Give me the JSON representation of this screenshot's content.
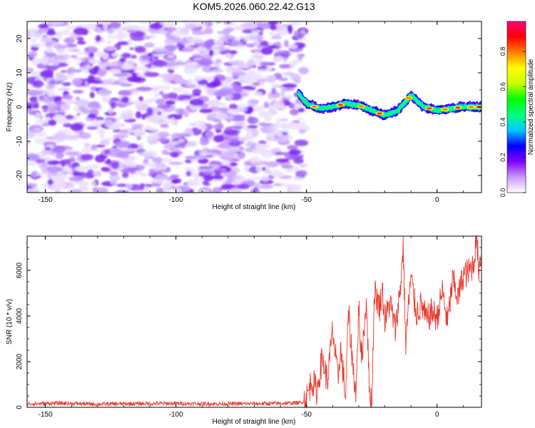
{
  "title": "KOM5.2026.060.22.42.G13",
  "chart_data": [
    {
      "type": "heatmap",
      "xlabel": "Height of straight line (km)",
      "ylabel": "Frequency (Hz)",
      "xlim": [
        -157,
        17
      ],
      "ylim": [
        -25,
        25
      ],
      "x_ticks": [
        -150,
        -100,
        -50,
        0
      ],
      "y_ticks": [
        -20,
        -10,
        0,
        10,
        20
      ],
      "noise_region_x": [
        -157,
        -51
      ],
      "signal_region_x": [
        -51,
        17
      ],
      "signal_track": {
        "x": [
          -53,
          -50,
          -45,
          -40,
          -35,
          -30,
          -25,
          -20,
          -15,
          -10,
          -8,
          -5,
          0,
          5,
          10,
          15,
          17
        ],
        "freq": [
          4,
          1,
          -0.5,
          0,
          1,
          0.5,
          -1,
          -2.5,
          -1,
          3.5,
          2,
          0,
          -1,
          -0.5,
          0,
          0,
          0
        ]
      },
      "colorbar": {
        "label": "Normalized spectral amplitude",
        "range": [
          0,
          0.97
        ],
        "ticks": [
          "0.0",
          "0.2",
          "0.4",
          "0.6",
          "0.8"
        ],
        "colors": [
          "#ffffff",
          "#cc99ff",
          "#8000ff",
          "#0000ff",
          "#00c8ff",
          "#00ff80",
          "#00ff00",
          "#c8ff00",
          "#ffff00",
          "#ff8000",
          "#ff0000",
          "#ff0080"
        ]
      }
    },
    {
      "type": "line",
      "xlabel": "Height of straight line (km)",
      "ylabel": "SNR (10 * v/v)",
      "xlim": [
        -157,
        17
      ],
      "ylim": [
        0,
        7500
      ],
      "x_ticks": [
        -150,
        -100,
        -50,
        0
      ],
      "y_ticks": [
        0,
        2000,
        4000,
        6000
      ],
      "color": "#e8392f",
      "series": [
        {
          "name": "SNR",
          "x": [
            -157,
            -145,
            -130,
            -115,
            -100,
            -85,
            -70,
            -60,
            -52,
            -50,
            -48,
            -46,
            -44,
            -42,
            -40,
            -38,
            -37,
            -35,
            -34,
            -32,
            -31,
            -30,
            -29,
            -27,
            -26,
            -25,
            -24,
            -22,
            -21,
            -20,
            -18,
            -16,
            -14,
            -13,
            -12,
            -11,
            -10,
            -8,
            -6,
            -4,
            -2,
            0,
            2,
            4,
            6,
            8,
            10,
            12,
            14,
            15,
            16,
            17
          ],
          "y": [
            150,
            180,
            140,
            160,
            170,
            150,
            160,
            170,
            200,
            400,
            1200,
            700,
            2200,
            1100,
            3400,
            1200,
            2600,
            400,
            4200,
            1500,
            600,
            4500,
            2000,
            4800,
            800,
            200,
            5100,
            4400,
            5200,
            3800,
            4600,
            3400,
            5300,
            7100,
            2800,
            4400,
            5700,
            4100,
            4500,
            3800,
            4200,
            3900,
            5100,
            3700,
            5600,
            4800,
            5800,
            5900,
            6300,
            7500,
            6100,
            6800
          ]
        }
      ]
    }
  ]
}
